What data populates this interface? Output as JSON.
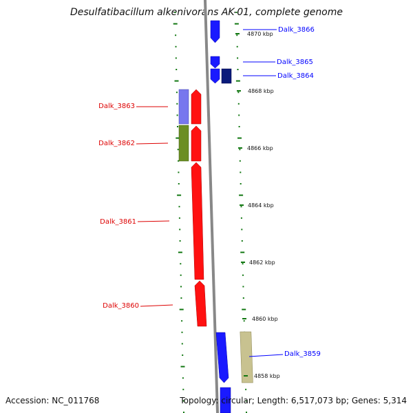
{
  "title": "Desulfatibacillum alkenivorans AK-01, complete genome",
  "footer": {
    "accession": "Accession: NC_011768",
    "stats": "Topology: circular; Length: 6,517,073 bp; Genes: 5,314"
  },
  "colors": {
    "forward": "#0000ff",
    "reverse": "#ff0000",
    "backbone": "#888888",
    "ticks": "#117711"
  },
  "kbp_labels": [
    {
      "text": "4870 kbp",
      "kbp": 4870
    },
    {
      "text": "4868 kbp",
      "kbp": 4868
    },
    {
      "text": "4866 kbp",
      "kbp": 4866
    },
    {
      "text": "4864 kbp",
      "kbp": 4864
    },
    {
      "text": "4862 kbp",
      "kbp": 4862
    },
    {
      "text": "4860 kbp",
      "kbp": 4860
    },
    {
      "text": "4858 kbp",
      "kbp": 4858
    }
  ],
  "genes": [
    {
      "id": "Dalk_3866",
      "label": "Dalk_3866",
      "strand": "+"
    },
    {
      "id": "Dalk_3865",
      "label": "Dalk_3865",
      "strand": "+"
    },
    {
      "id": "Dalk_3864",
      "label": "Dalk_3864",
      "strand": "+"
    },
    {
      "id": "Dalk_3863",
      "label": "Dalk_3863",
      "strand": "-"
    },
    {
      "id": "Dalk_3862",
      "label": "Dalk_3862",
      "strand": "-"
    },
    {
      "id": "Dalk_3861",
      "label": "Dalk_3861",
      "strand": "-"
    },
    {
      "id": "Dalk_3860",
      "label": "Dalk_3860",
      "strand": "-"
    },
    {
      "id": "Dalk_3859",
      "label": "Dalk_3859",
      "strand": "+"
    }
  ]
}
